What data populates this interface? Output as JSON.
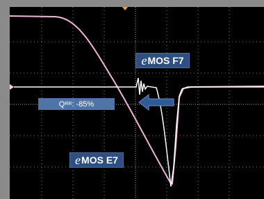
{
  "labels": [
    {
      "prefix": "e",
      "text": "MOS F7"
    },
    {
      "prefix": "e",
      "text": "MOS E7"
    }
  ],
  "qrr": {
    "symbol": "Q",
    "subscript": "RR",
    "text": ": -85%"
  }
}
